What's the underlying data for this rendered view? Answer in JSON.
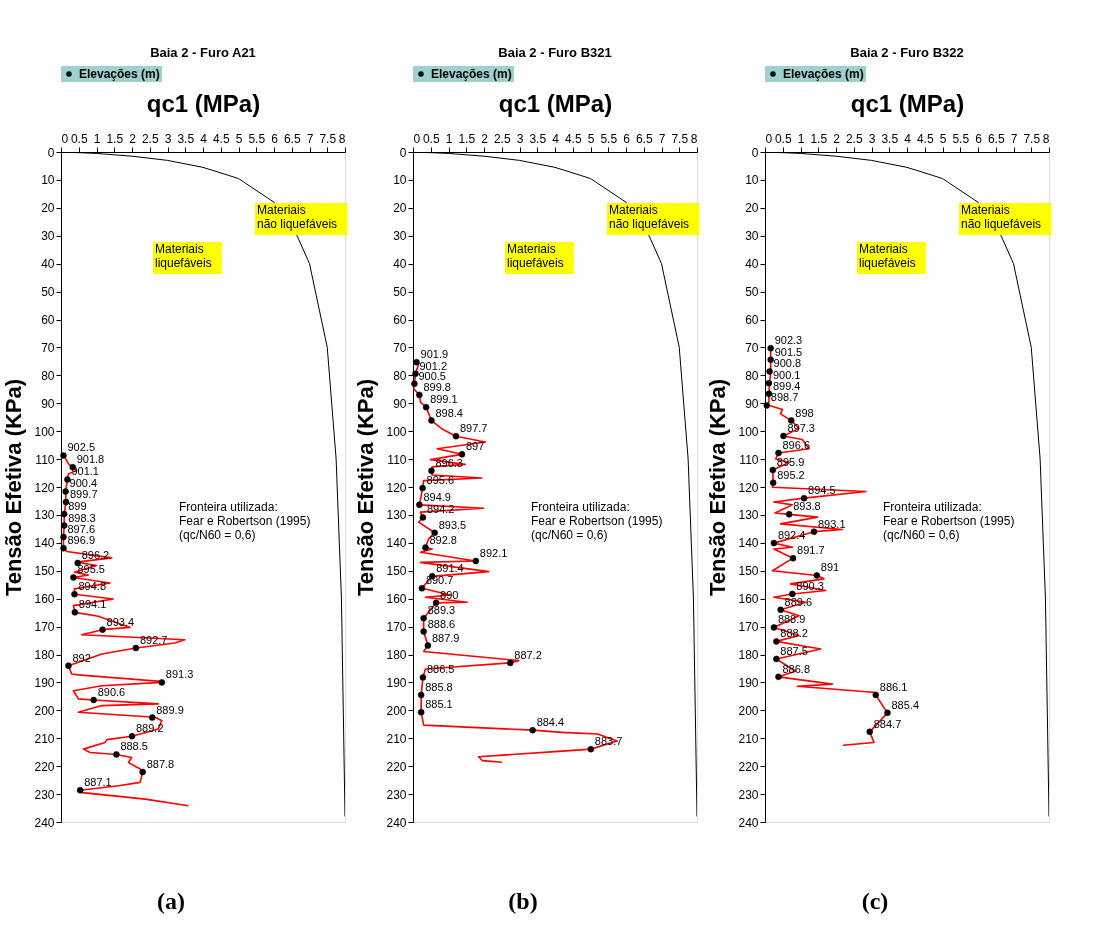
{
  "chart_data": [
    {
      "type": "line",
      "title": "Baia 2 - Furo A21",
      "xlabel": "qc1 (MPa)",
      "ylabel": "Tensão Efetiva (KPa)",
      "legend": "top",
      "xlim": [
        0,
        8
      ],
      "xticks": [
        0,
        0.5,
        1,
        1.5,
        2,
        2.5,
        3,
        3.5,
        4,
        4.5,
        5,
        5.5,
        6,
        6.5,
        7,
        7.5,
        8
      ],
      "ylim": [
        240,
        0
      ],
      "yticks": [
        0,
        10,
        20,
        30,
        40,
        50,
        60,
        70,
        80,
        90,
        100,
        110,
        120,
        130,
        140,
        150,
        160,
        170,
        180,
        190,
        200,
        210,
        220,
        230,
        240
      ],
      "annotations": [
        "Materiais\nliquefáveis",
        "Materiais\nnão liquefáveis",
        "Fronteira utilizada:\nFear e Robertson (1995)\n(qc/N60 = 0,6)",
        "(a)",
        {
          "text": "902.5",
          "x": 0.07,
          "y": 108.7
        },
        {
          "text": "901.8",
          "x": 0.33,
          "y": 112.9
        },
        {
          "text": "901.1",
          "x": 0.18,
          "y": 117.3
        },
        {
          "text": "900.4",
          "x": 0.13,
          "y": 121.6
        },
        {
          "text": "899.7",
          "x": 0.14,
          "y": 125.4
        },
        {
          "text": "899",
          "x": 0.09,
          "y": 129.7
        },
        {
          "text": "898.3",
          "x": 0.09,
          "y": 133.8
        },
        {
          "text": "897.6",
          "x": 0.07,
          "y": 137.9
        },
        {
          "text": "896.9",
          "x": 0.07,
          "y": 141.9
        },
        {
          "text": "896.2",
          "x": 0.47,
          "y": 147.2
        },
        {
          "text": "895.5",
          "x": 0.35,
          "y": 152.4
        },
        {
          "text": "894.8",
          "x": 0.38,
          "y": 158.4
        },
        {
          "text": "894.1",
          "x": 0.39,
          "y": 164.9
        },
        {
          "text": "893.4",
          "x": 1.17,
          "y": 171.1
        },
        {
          "text": "892.7",
          "x": 2.11,
          "y": 177.7
        },
        {
          "text": "892",
          "x": 0.21,
          "y": 184
        },
        {
          "text": "891.3",
          "x": 2.84,
          "y": 190
        },
        {
          "text": "890.6",
          "x": 0.92,
          "y": 196.3
        },
        {
          "text": "889.9",
          "x": 2.57,
          "y": 202.6
        },
        {
          "text": "889.2",
          "x": 2.0,
          "y": 209.3
        },
        {
          "text": "888.5",
          "x": 1.56,
          "y": 215.8
        },
        {
          "text": "887.8",
          "x": 2.3,
          "y": 222.1
        },
        {
          "text": "887.1",
          "x": 0.54,
          "y": 228.6
        }
      ],
      "series": [
        {
          "type": "line",
          "color": "#000000",
          "x": [
            0,
            1,
            2,
            3,
            4,
            5,
            6,
            6.3,
            6.65,
            7,
            7.5,
            7.75,
            7.9,
            8
          ],
          "values": [
            0,
            0.5,
            1.5,
            3,
            5.5,
            9.5,
            18,
            null,
            30,
            40,
            70,
            110,
            160,
            238
          ]
        },
        {
          "type": "line",
          "color": "#ff0000",
          "x": [
            0.07,
            0.21,
            0.44,
            0.21,
            0.18,
            0.13,
            0.14,
            0.09,
            0.09,
            0.07,
            0.07,
            0.16,
            1.43,
            0.44,
            1.0,
            0.38,
            0.77,
            0.35,
            1.38,
            0.38,
            0.38,
            1.47,
            0.35,
            0.39,
            1.05,
            1.94,
            1.17,
            0.58,
            3.49,
            3.21,
            2.11,
            1.15,
            0.21,
            0.3,
            0.49,
            2.88,
            2.84,
            1.15,
            0.35,
            0.49,
            0.92,
            2.74,
            1.15,
            0.49,
            2.65,
            2.84,
            2.74,
            2.0,
            1.29,
            1.24,
            0.63,
            0.82,
            1.56,
            1.99,
            1.9,
            2.23,
            2.3,
            2.23,
            1.62,
            0.54,
            0.54,
            2.37,
            3.59
          ],
          "values": [
            108.4,
            111.7,
            114.1,
            115.3,
            117.3,
            121.6,
            125.4,
            129.7,
            133.8,
            137.9,
            142.2,
            143.1,
            145.4,
            146.9,
            148.1,
            150.5,
            151.5,
            152.4,
            154.4,
            156.5,
            158.4,
            160.1,
            162.5,
            164.9,
            166.3,
            170.3,
            171.1,
            172.9,
            174.7,
            175.9,
            177.7,
            179.8,
            184.0,
            187.0,
            187.3,
            189.7,
            190.0,
            191.2,
            193.0,
            195.9,
            196.3,
            197.7,
            198.3,
            200.7,
            202.5,
            203.7,
            206.7,
            209.3,
            210.5,
            211.5,
            213.9,
            215.1,
            215.8,
            216.9,
            218.7,
            221.0,
            222.1,
            225.8,
            227.0,
            228.6,
            229.4,
            231.8,
            234.2
          ]
        },
        {
          "type": "scatter",
          "name": "Elevações (m)",
          "color": "#000000",
          "marker": "circle",
          "x": [
            0.07,
            0.33,
            0.18,
            0.13,
            0.14,
            0.09,
            0.09,
            0.07,
            0.07,
            0.47,
            0.35,
            0.38,
            0.39,
            1.17,
            2.11,
            0.21,
            2.84,
            0.92,
            2.57,
            2.0,
            1.56,
            2.3,
            0.54
          ],
          "values": [
            108.7,
            112.9,
            117.3,
            121.6,
            125.4,
            129.7,
            133.8,
            137.9,
            141.9,
            147.2,
            152.4,
            158.4,
            164.9,
            171.1,
            177.7,
            184,
            190,
            196.3,
            202.6,
            209.3,
            215.8,
            222.1,
            228.6
          ]
        }
      ]
    },
    {
      "type": "line",
      "title": "Baia 2 - Furo B321",
      "xlabel": "qc1 (MPa)",
      "ylabel": "Tensão Efetiva (KPa)",
      "legend": "top",
      "xlim": [
        0,
        8
      ],
      "xticks": [
        0,
        0.5,
        1,
        1.5,
        2,
        2.5,
        3,
        3.5,
        4,
        4.5,
        5,
        5.5,
        6,
        6.5,
        7,
        7.5,
        8
      ],
      "ylim": [
        240,
        0
      ],
      "yticks": [
        0,
        10,
        20,
        30,
        40,
        50,
        60,
        70,
        80,
        90,
        100,
        110,
        120,
        130,
        140,
        150,
        160,
        170,
        180,
        190,
        200,
        210,
        220,
        230,
        240
      ],
      "annotations": [
        "Materiais\nliquefáveis",
        "Materiais\nnão liquefáveis",
        "Fronteira utilizada:\nFear e Robertson (1995)\n(qc/N60 = 0,6)",
        "(b)",
        {
          "text": "901.9",
          "x": 0.1,
          "y": 75.3
        },
        {
          "text": "901.2",
          "x": 0.07,
          "y": 79.4
        },
        {
          "text": "900.5",
          "x": 0.04,
          "y": 83.0
        },
        {
          "text": "899.8",
          "x": 0.18,
          "y": 87.0
        },
        {
          "text": "899.1",
          "x": 0.37,
          "y": 91.4
        },
        {
          "text": "898.4",
          "x": 0.52,
          "y": 96.2
        },
        {
          "text": "897.7",
          "x": 1.21,
          "y": 101.8
        },
        {
          "text": "897",
          "x": 1.38,
          "y": 108.3
        },
        {
          "text": "896.3",
          "x": 0.52,
          "y": 114.2
        },
        {
          "text": "895.6",
          "x": 0.27,
          "y": 120.4
        },
        {
          "text": "894.9",
          "x": 0.18,
          "y": 126.4
        },
        {
          "text": "894.2",
          "x": 0.28,
          "y": 130.9
        },
        {
          "text": "893.5",
          "x": 0.61,
          "y": 136.4
        },
        {
          "text": "892.8",
          "x": 0.35,
          "y": 141.7
        },
        {
          "text": "892.1",
          "x": 1.77,
          "y": 146.5
        },
        {
          "text": "891.4",
          "x": 0.54,
          "y": 152.0
        },
        {
          "text": "890.7",
          "x": 0.25,
          "y": 156.3
        },
        {
          "text": "890",
          "x": 0.65,
          "y": 161.5
        },
        {
          "text": "889.3",
          "x": 0.3,
          "y": 167.0
        },
        {
          "text": "888.6",
          "x": 0.3,
          "y": 171.8
        },
        {
          "text": "887.9",
          "x": 0.42,
          "y": 176.8
        },
        {
          "text": "887.2",
          "x": 2.74,
          "y": 183.0
        },
        {
          "text": "886.5",
          "x": 0.28,
          "y": 188.2
        },
        {
          "text": "885.8",
          "x": 0.23,
          "y": 194.5
        },
        {
          "text": "885.1",
          "x": 0.23,
          "y": 200.7
        },
        {
          "text": "884.4",
          "x": 3.37,
          "y": 207.1
        },
        {
          "text": "883.7",
          "x": 5.01,
          "y": 213.9
        }
      ],
      "series": [
        {
          "type": "line",
          "color": "#000000",
          "x": [
            0,
            1,
            2,
            3,
            4,
            5,
            6,
            6.3,
            6.65,
            7,
            7.5,
            7.75,
            7.9,
            8
          ],
          "values": [
            0,
            0.5,
            1.5,
            3,
            5.5,
            9.5,
            18,
            null,
            30,
            40,
            70,
            110,
            160,
            238
          ]
        },
        {
          "type": "line",
          "color": "#ff0000",
          "x": [
            0.1,
            0.16,
            0.07,
            0.04,
            0.02,
            0.18,
            0.21,
            0.37,
            0.52,
            0.82,
            1.21,
            2.04,
            0.68,
            1.38,
            0.49,
            1.47,
            0.54,
            0.52,
            0.54,
            1.94,
            0.3,
            0.27,
            0.18,
            1.99,
            0.21,
            0.28,
            0.16,
            0.61,
            0.44,
            0.35,
            0.54,
            0.21,
            1.77,
            0.21,
            2.13,
            0.54,
            0.25,
            1.05,
            0.35,
            1.52,
            0.65,
            0.3,
            0.3,
            0.42,
            0.3,
            2.98,
            2.74,
            0.35,
            0.28,
            0.23,
            0.23,
            0.3,
            3.37,
            4.2,
            5.2,
            5.75,
            5.01,
            4.2,
            1.85,
            1.95,
            2.51
          ],
          "values": [
            75.0,
            75.9,
            79.4,
            83.0,
            84.8,
            87.0,
            89.6,
            91.4,
            96.2,
            99.2,
            101.8,
            103.9,
            106.3,
            108.3,
            110.2,
            111.9,
            112.8,
            114.2,
            115.7,
            116.8,
            117.7,
            120.4,
            126.4,
            127.6,
            129.0,
            130.9,
            132.6,
            136.4,
            138.6,
            141.7,
            142.2,
            143.4,
            146.5,
            147.0,
            150.3,
            152.0,
            156.3,
            158.7,
            159.5,
            161.3,
            161.5,
            167.0,
            171.8,
            176.8,
            178.9,
            182.2,
            183.0,
            185.2,
            188.2,
            194.5,
            200.7,
            205.3,
            207.1,
            207.9,
            208.5,
            211.0,
            213.9,
            214.6,
            216.6,
            218.0,
            218.6
          ]
        },
        {
          "type": "scatter",
          "name": "Elevações (m)",
          "color": "#000000",
          "marker": "circle",
          "x": [
            0.1,
            0.07,
            0.04,
            0.18,
            0.37,
            0.52,
            1.21,
            1.38,
            0.52,
            0.27,
            0.18,
            0.28,
            0.61,
            0.35,
            1.77,
            0.54,
            0.25,
            0.65,
            0.3,
            0.3,
            0.42,
            2.74,
            0.28,
            0.23,
            0.23,
            3.37,
            5.01
          ],
          "values": [
            75.3,
            79.4,
            83.0,
            87.0,
            91.4,
            96.2,
            101.8,
            108.3,
            114.2,
            120.4,
            126.4,
            130.9,
            136.4,
            141.7,
            146.5,
            152.0,
            156.3,
            161.5,
            167.0,
            171.8,
            176.8,
            183.0,
            188.2,
            194.5,
            200.7,
            207.1,
            213.9
          ]
        }
      ]
    },
    {
      "type": "line",
      "title": "Baia 2 - Furo B322",
      "xlabel": "qc1 (MPa)",
      "ylabel": "Tensão Efetiva (KPa)",
      "legend": "top",
      "xlim": [
        0,
        8
      ],
      "xticks": [
        0,
        0.5,
        1,
        1.5,
        2,
        2.5,
        3,
        3.5,
        4,
        4.5,
        5,
        5.5,
        6,
        6.5,
        7,
        7.5,
        8
      ],
      "ylim": [
        240,
        0
      ],
      "yticks": [
        0,
        10,
        20,
        30,
        40,
        50,
        60,
        70,
        80,
        90,
        100,
        110,
        120,
        130,
        140,
        150,
        160,
        170,
        180,
        190,
        200,
        210,
        220,
        230,
        240
      ],
      "annotations": [
        "Materiais\nliquefáveis",
        "Materiais\nnão liquefáveis",
        "Fronteira utilizada:\nFear e Robertson (1995)\n(qc/N60 = 0,6)",
        "(c)",
        {
          "text": "902.3",
          "x": 0.16,
          "y": 70.3
        },
        {
          "text": "901.5",
          "x": 0.16,
          "y": 74.4
        },
        {
          "text": "900.8",
          "x": 0.13,
          "y": 78.6
        },
        {
          "text": "900.1",
          "x": 0.11,
          "y": 82.8
        },
        {
          "text": "899.4",
          "x": 0.11,
          "y": 86.6
        },
        {
          "text": "898.7",
          "x": 0.05,
          "y": 90.8
        },
        {
          "text": "898",
          "x": 0.74,
          "y": 96.2
        },
        {
          "text": "897.3",
          "x": 0.52,
          "y": 101.7
        },
        {
          "text": "896.6",
          "x": 0.38,
          "y": 107.8
        },
        {
          "text": "895.9",
          "x": 0.22,
          "y": 113.9
        },
        {
          "text": "895.2",
          "x": 0.23,
          "y": 118.5
        },
        {
          "text": "894.5",
          "x": 1.1,
          "y": 124.0
        },
        {
          "text": "893.8",
          "x": 0.68,
          "y": 129.8
        },
        {
          "text": "893.1",
          "x": 1.38,
          "y": 136.0
        },
        {
          "text": "892.4",
          "x": 0.25,
          "y": 140.1
        },
        {
          "text": "891.7",
          "x": 0.79,
          "y": 145.5
        },
        {
          "text": "891",
          "x": 1.46,
          "y": 151.7
        },
        {
          "text": "890.3",
          "x": 0.77,
          "y": 158.3
        },
        {
          "text": "889.6",
          "x": 0.44,
          "y": 164.0
        },
        {
          "text": "888.9",
          "x": 0.25,
          "y": 170.3
        },
        {
          "text": "888.2",
          "x": 0.32,
          "y": 175.3
        },
        {
          "text": "887.5",
          "x": 0.32,
          "y": 181.6
        },
        {
          "text": "886.8",
          "x": 0.38,
          "y": 188.0
        },
        {
          "text": "886.1",
          "x": 3.12,
          "y": 194.5
        },
        {
          "text": "885.4",
          "x": 3.45,
          "y": 200.9
        },
        {
          "text": "884.7",
          "x": 2.95,
          "y": 207.7
        }
      ],
      "series": [
        {
          "type": "line",
          "color": "#000000",
          "x": [
            0,
            1,
            2,
            3,
            4,
            5,
            6,
            6.3,
            6.65,
            7,
            7.5,
            7.75,
            7.9,
            8
          ],
          "values": [
            0,
            0.5,
            1.5,
            3,
            5.5,
            9.5,
            18,
            null,
            30,
            40,
            70,
            110,
            160,
            238
          ]
        },
        {
          "type": "line",
          "color": "#ff0000",
          "x": [
            0.16,
            0.16,
            0.13,
            0.11,
            0.11,
            0.05,
            0.13,
            0.49,
            0.44,
            0.74,
            0.96,
            0.52,
            1.05,
            1.24,
            0.38,
            0.3,
            0.68,
            0.22,
            0.23,
            0.21,
            2.84,
            1.1,
            0.25,
            0.77,
            0.28,
            0.68,
            1.48,
            0.44,
            2.18,
            1.38,
            0.25,
            0.77,
            0.25,
            0.79,
            0.21,
            1.46,
            1.66,
            0.72,
            1.71,
            0.77,
            0.25,
            1.15,
            0.44,
            0.96,
            0.25,
            0.96,
            0.32,
            1.57,
            0.32,
            0.86,
            0.38,
            1.9,
            0.91,
            3.12,
            3.12,
            3.45,
            2.95,
            3.07,
            2.2
          ],
          "values": [
            70.3,
            78.9,
            82.8,
            86.6,
            89.6,
            90.8,
            90.8,
            92.2,
            93.8,
            96.2,
            99.0,
            101.7,
            103.0,
            106.3,
            107.8,
            110.0,
            111.2,
            113.9,
            118.5,
            120.1,
            121.6,
            124.0,
            125.4,
            126.4,
            129.3,
            129.8,
            130.8,
            133.2,
            135.2,
            136.0,
            140.1,
            141.6,
            142.2,
            145.5,
            150.0,
            151.7,
            152.9,
            154.7,
            157.1,
            158.3,
            159.5,
            161.3,
            164.0,
            166.1,
            170.3,
            173.2,
            175.3,
            178.0,
            181.6,
            186.0,
            188.0,
            190.6,
            191.4,
            193.6,
            194.5,
            200.9,
            207.7,
            211.5,
            212.5
          ]
        },
        {
          "type": "scatter",
          "name": "Elevações (m)",
          "color": "#000000",
          "marker": "circle",
          "x": [
            0.16,
            0.16,
            0.13,
            0.11,
            0.11,
            0.05,
            0.74,
            0.52,
            0.38,
            0.22,
            0.23,
            1.1,
            0.68,
            1.38,
            0.25,
            0.79,
            1.46,
            0.77,
            0.44,
            0.25,
            0.32,
            0.32,
            0.38,
            3.12,
            3.45,
            2.95
          ],
          "values": [
            70.3,
            74.4,
            78.6,
            82.8,
            86.6,
            90.8,
            96.2,
            101.7,
            107.8,
            113.9,
            118.5,
            124.0,
            129.8,
            136.0,
            140.1,
            145.5,
            151.7,
            158.3,
            164.0,
            170.3,
            175.3,
            181.6,
            188.0,
            194.5,
            200.9,
            207.7
          ]
        }
      ]
    }
  ]
}
